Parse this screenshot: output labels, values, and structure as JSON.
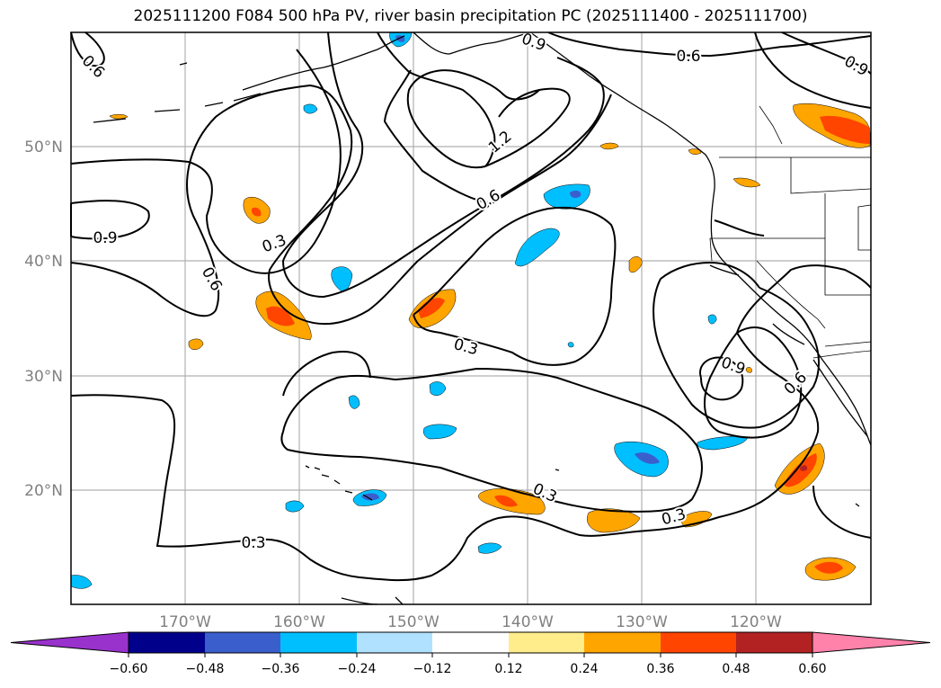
{
  "title": "2025111200 F084 500 hPa PV, river basin precipitation PC (2025111400 - 2025111700)",
  "map": {
    "lat_labels": [
      "50°N",
      "40°N",
      "30°N",
      "20°N"
    ],
    "lon_labels": [
      "170°W",
      "160°W",
      "150°W",
      "140°W",
      "130°W",
      "120°W"
    ],
    "pv_contour_labels": [
      "0.6",
      "0.9",
      "0.6",
      "0.9",
      "1.2",
      "0.6",
      "0.9",
      "0.3",
      "0.6",
      "0.3",
      "0.9",
      "0.6",
      "0.3",
      "0.3",
      "0.3"
    ]
  },
  "colorbar": {
    "tick_labels": [
      "−0.60",
      "−0.48",
      "−0.36",
      "−0.24",
      "−0.12",
      "0.12",
      "0.24",
      "0.36",
      "0.48",
      "0.60"
    ],
    "colors": [
      "#9932CC",
      "#00008B",
      "#3A5FCD",
      "#00BFFF",
      "#B0E2FF",
      "#FFFFFF",
      "#FFEC8B",
      "#FFA500",
      "#FF4500",
      "#B22222",
      "#FF82AB"
    ]
  }
}
